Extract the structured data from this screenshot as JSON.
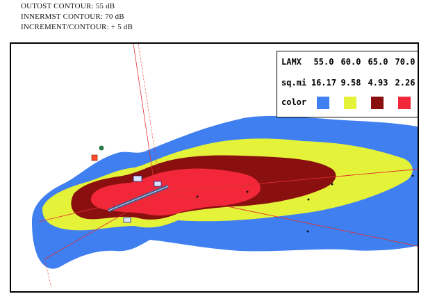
{
  "header": {
    "lines": [
      "OUTOST CONTOUR: 55 dB",
      "INNERMST CONTOUR: 70 dB",
      "INCREMENT/CONTOUR: + 5 dB"
    ]
  },
  "legend": {
    "row_labels": [
      "LAMX",
      "sq.mi",
      "color"
    ],
    "levels": [
      "55.0",
      "60.0",
      "65.0",
      "70.0"
    ],
    "areas": [
      "16.17",
      "9.58",
      "4.93",
      "2.26"
    ],
    "colors": [
      "#3f7ff0",
      "#e4f23a",
      "#8a0f0f",
      "#f2283a"
    ]
  },
  "map": {
    "contour_colors": {
      "c55": "#3f7ff0",
      "c60": "#e4f23a",
      "c65": "#8a0f0f",
      "c70": "#f2283a"
    },
    "track_color": "#e03030",
    "runway_color": "#4a5a8a"
  }
}
